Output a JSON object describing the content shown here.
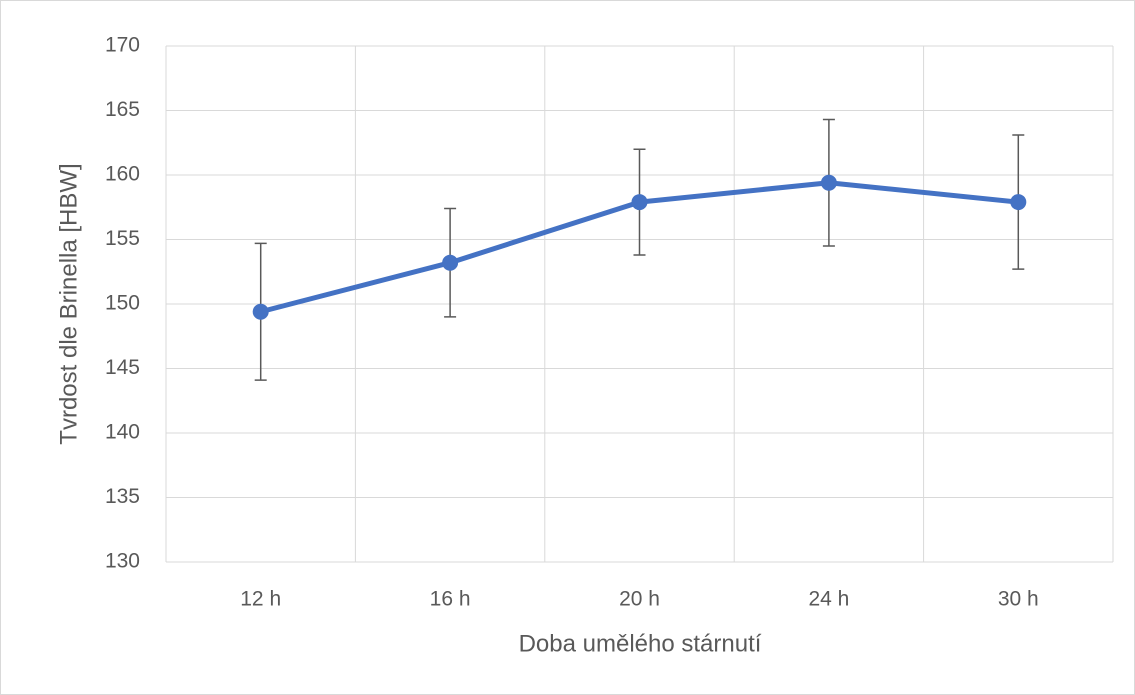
{
  "chart_data": {
    "type": "line",
    "x_label": "Doba umělého stárnutí",
    "y_label": "Tvrdost dle Brinella [HBW]",
    "categories": [
      "12 h",
      "16 h",
      "20 h",
      "24 h",
      "30 h"
    ],
    "series": [
      {
        "color": "#4472c4",
        "values": [
          149.4,
          153.2,
          157.9,
          159.4,
          157.9
        ],
        "errors": [
          5.3,
          4.2,
          4.1,
          4.9,
          5.2
        ]
      }
    ],
    "ylim": [
      130,
      170
    ],
    "yticks": [
      130,
      135,
      140,
      145,
      150,
      155,
      160,
      165,
      170
    ],
    "grid": true
  }
}
